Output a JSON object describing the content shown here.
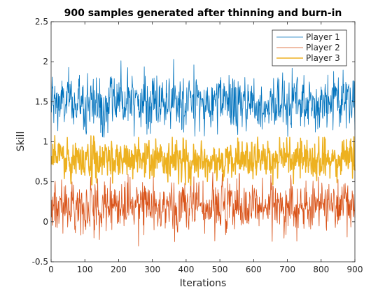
{
  "chart_data": {
    "type": "line",
    "title": "900 samples generated after thinning and burn-in",
    "xlabel": "Iterations",
    "ylabel": "Skill",
    "xlim": [
      0,
      900
    ],
    "ylim": [
      -0.5,
      2.5
    ],
    "xticks": [
      "0",
      "100",
      "200",
      "300",
      "400",
      "500",
      "600",
      "700",
      "800",
      "900"
    ],
    "yticks": [
      "-0.5",
      "0",
      "0.5",
      "1",
      "1.5",
      "2",
      "2.5"
    ],
    "grid": false,
    "legend_position": "top-right",
    "samples": 900,
    "series": [
      {
        "name": "Player 1",
        "color": "#0072BD",
        "mean": 1.48,
        "spread": 0.17,
        "min": 1.05,
        "max": 2.05,
        "line_width": 0.8
      },
      {
        "name": "Player 2",
        "color": "#D95319",
        "mean": 0.2,
        "spread": 0.15,
        "min": -0.4,
        "max": 0.62,
        "line_width": 0.8
      },
      {
        "name": "Player 3",
        "color": "#EDB120",
        "mean": 0.78,
        "spread": 0.12,
        "min": 0.45,
        "max": 1.08,
        "line_width": 1.5
      }
    ]
  }
}
